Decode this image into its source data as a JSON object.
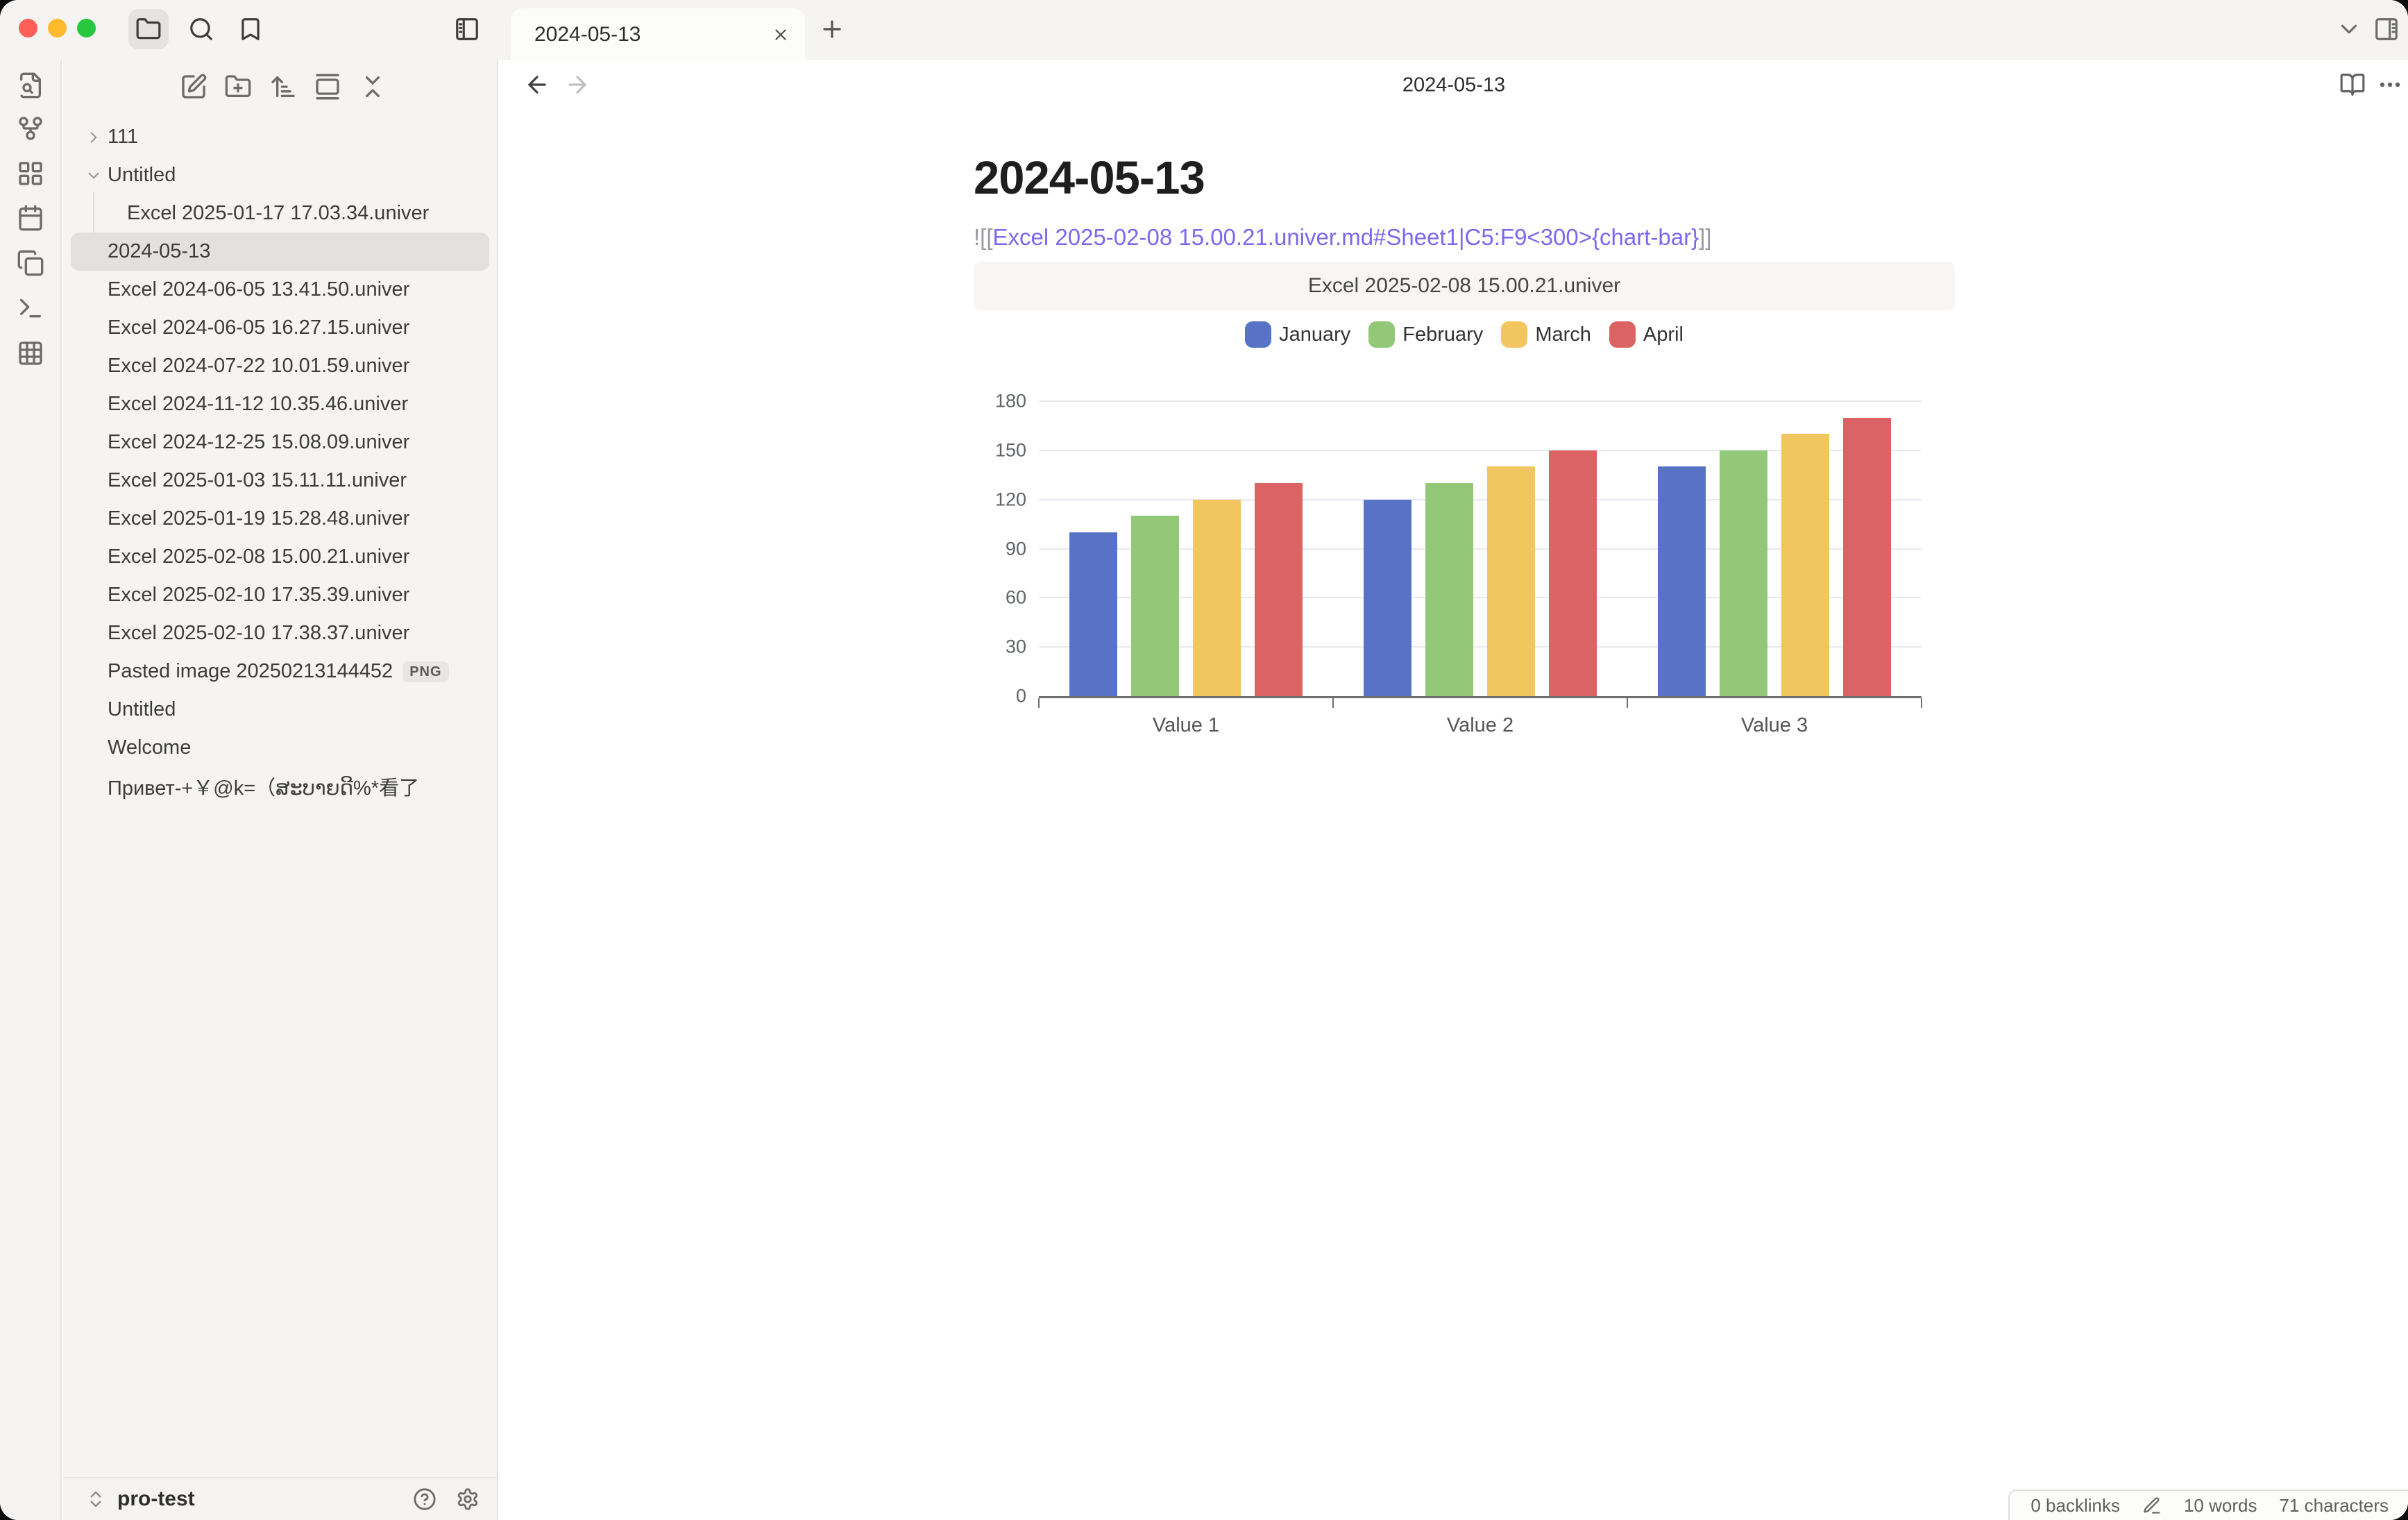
{
  "titlebar": {
    "tab_title": "2024-05-13"
  },
  "sidebar": {
    "files": [
      {
        "label": "111",
        "type": "folder",
        "state": "collapsed",
        "indent": 0
      },
      {
        "label": "Untitled",
        "type": "folder",
        "state": "expanded",
        "indent": 0
      },
      {
        "label": "Excel 2025-01-17 17.03.34.univer",
        "type": "file",
        "indent": 1
      },
      {
        "label": "2024-05-13",
        "type": "file",
        "indent": 0,
        "selected": true
      },
      {
        "label": "Excel 2024-06-05 13.41.50.univer",
        "type": "file",
        "indent": 0
      },
      {
        "label": "Excel 2024-06-05 16.27.15.univer",
        "type": "file",
        "indent": 0
      },
      {
        "label": "Excel 2024-07-22 10.01.59.univer",
        "type": "file",
        "indent": 0
      },
      {
        "label": "Excel 2024-11-12 10.35.46.univer",
        "type": "file",
        "indent": 0
      },
      {
        "label": "Excel 2024-12-25 15.08.09.univer",
        "type": "file",
        "indent": 0
      },
      {
        "label": "Excel 2025-01-03 15.11.11.univer",
        "type": "file",
        "indent": 0
      },
      {
        "label": "Excel 2025-01-19 15.28.48.univer",
        "type": "file",
        "indent": 0
      },
      {
        "label": "Excel 2025-02-08 15.00.21.univer",
        "type": "file",
        "indent": 0
      },
      {
        "label": "Excel 2025-02-10 17.35.39.univer",
        "type": "file",
        "indent": 0
      },
      {
        "label": "Excel 2025-02-10 17.38.37.univer",
        "type": "file",
        "indent": 0
      },
      {
        "label": "Pasted image 20250213144452",
        "type": "file",
        "indent": 0,
        "badge": "PNG"
      },
      {
        "label": "Untitled",
        "type": "file",
        "indent": 0
      },
      {
        "label": "Welcome",
        "type": "file",
        "indent": 0
      },
      {
        "label": "Привет-+￥@k=（ສະບາຍດີ%*看了",
        "type": "file",
        "indent": 0
      }
    ],
    "vault": {
      "name": "pro-test"
    }
  },
  "view": {
    "header_title": "2024-05-13",
    "doc_title": "2024-05-13",
    "embed_source": {
      "prefix": "![[",
      "link": "Excel 2025-02-08 15.00.21.univer.md#Sheet1|C5:F9<300>{chart-bar}",
      "suffix": "]]"
    },
    "embed_title": "Excel 2025-02-08 15.00.21.univer"
  },
  "chart_data": {
    "type": "bar",
    "title": "Excel 2025-02-08 15.00.21.univer",
    "categories": [
      "Value 1",
      "Value 2",
      "Value 3"
    ],
    "series": [
      {
        "name": "January",
        "color": "#5873c5",
        "values": [
          100,
          120,
          140
        ]
      },
      {
        "name": "February",
        "color": "#92c878",
        "values": [
          110,
          130,
          150
        ]
      },
      {
        "name": "March",
        "color": "#f2c65f",
        "values": [
          120,
          140,
          160
        ]
      },
      {
        "name": "April",
        "color": "#dc6363",
        "values": [
          130,
          150,
          170
        ]
      }
    ],
    "xlabel": "",
    "ylabel": "",
    "ylim": [
      0,
      180
    ],
    "ytick_step": 30,
    "grid": true,
    "legend_position": "top"
  },
  "status_bar": {
    "backlinks": "0 backlinks",
    "words": "10 words",
    "characters": "71 characters"
  }
}
